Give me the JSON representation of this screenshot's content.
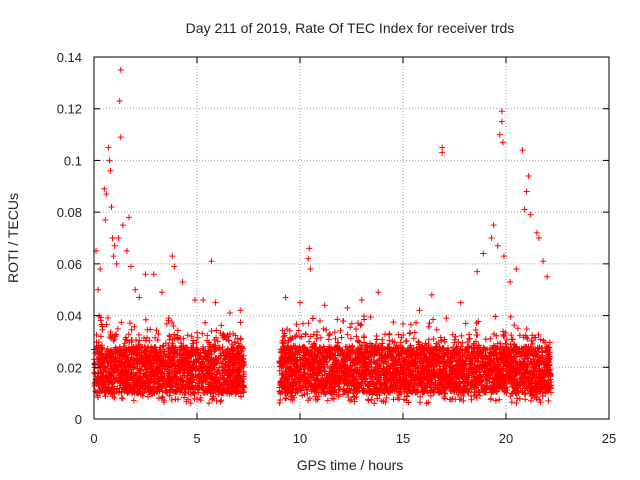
{
  "chart_data": {
    "type": "scatter",
    "title": "Day 211 of 2019, Rate Of TEC Index for receiver trds",
    "xlabel": "GPS time / hours",
    "ylabel": "ROTI / TECUs",
    "xlim": [
      0,
      25
    ],
    "ylim": [
      0,
      0.14
    ],
    "x_ticks": [
      0,
      5,
      10,
      15,
      20,
      25
    ],
    "x_tick_labels": [
      "0",
      "5",
      "10",
      "15",
      "20",
      "25"
    ],
    "y_ticks": [
      0,
      0.02,
      0.04,
      0.06,
      0.08,
      0.1,
      0.12,
      0.14
    ],
    "y_tick_labels": [
      "0",
      "0.02",
      "0.04",
      "0.06",
      "0.08",
      "0.1",
      "0.12",
      "0.14"
    ],
    "grid": true,
    "marker": "+",
    "series": [
      {
        "name": "ROTI",
        "color": "#ff0000",
        "segments": [
          {
            "x_start": 0.0,
            "x_end": 7.3,
            "y_min": 0.006,
            "y_max": 0.04
          },
          {
            "x_start": 9.0,
            "x_end": 22.2,
            "y_min": 0.006,
            "y_max": 0.04
          }
        ],
        "outliers": [
          [
            0.1,
            0.065
          ],
          [
            0.2,
            0.05
          ],
          [
            0.3,
            0.058
          ],
          [
            0.5,
            0.089
          ],
          [
            0.55,
            0.077
          ],
          [
            0.6,
            0.087
          ],
          [
            0.7,
            0.105
          ],
          [
            0.75,
            0.1
          ],
          [
            0.8,
            0.096
          ],
          [
            0.85,
            0.082
          ],
          [
            0.9,
            0.07
          ],
          [
            0.95,
            0.063
          ],
          [
            1.0,
            0.067
          ],
          [
            1.1,
            0.06
          ],
          [
            1.2,
            0.07
          ],
          [
            1.25,
            0.123
          ],
          [
            1.3,
            0.135
          ],
          [
            1.3,
            0.109
          ],
          [
            1.4,
            0.075
          ],
          [
            1.6,
            0.065
          ],
          [
            1.7,
            0.078
          ],
          [
            1.8,
            0.059
          ],
          [
            2.0,
            0.05
          ],
          [
            2.2,
            0.047
          ],
          [
            2.5,
            0.056
          ],
          [
            2.9,
            0.056
          ],
          [
            3.3,
            0.049
          ],
          [
            3.8,
            0.063
          ],
          [
            3.9,
            0.059
          ],
          [
            4.3,
            0.053
          ],
          [
            4.9,
            0.046
          ],
          [
            5.3,
            0.046
          ],
          [
            5.7,
            0.061
          ],
          [
            5.9,
            0.045
          ],
          [
            6.6,
            0.041
          ],
          [
            7.1,
            0.042
          ],
          [
            9.3,
            0.047
          ],
          [
            10.0,
            0.045
          ],
          [
            10.4,
            0.062
          ],
          [
            10.45,
            0.066
          ],
          [
            10.5,
            0.058
          ],
          [
            11.2,
            0.044
          ],
          [
            12.3,
            0.043
          ],
          [
            13.0,
            0.046
          ],
          [
            13.8,
            0.049
          ],
          [
            15.8,
            0.042
          ],
          [
            16.4,
            0.048
          ],
          [
            16.9,
            0.105
          ],
          [
            16.9,
            0.103
          ],
          [
            17.8,
            0.045
          ],
          [
            18.6,
            0.057
          ],
          [
            18.9,
            0.064
          ],
          [
            19.3,
            0.07
          ],
          [
            19.4,
            0.075
          ],
          [
            19.6,
            0.067
          ],
          [
            19.7,
            0.11
          ],
          [
            19.8,
            0.119
          ],
          [
            19.8,
            0.115
          ],
          [
            19.85,
            0.107
          ],
          [
            19.9,
            0.063
          ],
          [
            20.2,
            0.053
          ],
          [
            20.5,
            0.058
          ],
          [
            20.8,
            0.104
          ],
          [
            20.9,
            0.081
          ],
          [
            21.0,
            0.088
          ],
          [
            21.1,
            0.094
          ],
          [
            21.2,
            0.079
          ],
          [
            21.5,
            0.072
          ],
          [
            21.6,
            0.07
          ],
          [
            21.8,
            0.061
          ],
          [
            22.0,
            0.055
          ]
        ]
      }
    ]
  }
}
